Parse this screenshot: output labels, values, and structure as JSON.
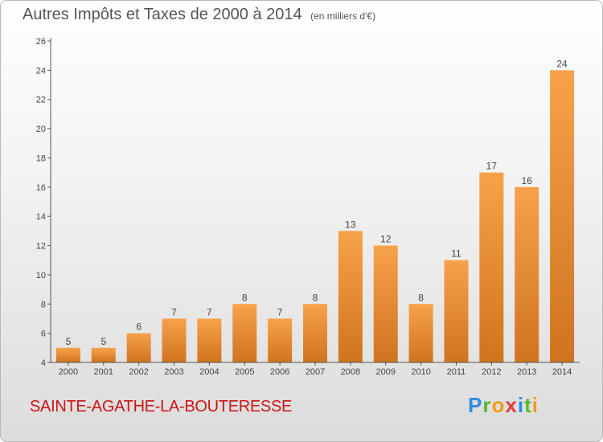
{
  "header": {
    "title": "Autres Impôts et Taxes de 2000 à 2014",
    "unit": "(en milliers d'€)"
  },
  "footer": {
    "commune": "SAINTE-AGATHE-LA-BOUTERESSE",
    "logo": [
      "P",
      "r",
      "o",
      "x",
      "i",
      "t",
      "i"
    ]
  },
  "colors": {
    "bar_light": "#f7a24a",
    "bar_dark": "#d0731f",
    "axis": "#555555",
    "commune": "#cc1616"
  },
  "chart_data": {
    "type": "bar",
    "title": "Autres Impôts et Taxes de 2000 à 2014",
    "subtitle": "(en milliers d'€)",
    "categories": [
      "2000",
      "2001",
      "2002",
      "2003",
      "2004",
      "2005",
      "2006",
      "2007",
      "2008",
      "2009",
      "2010",
      "2011",
      "2012",
      "2013",
      "2014"
    ],
    "values": [
      5,
      5,
      6,
      7,
      7,
      8,
      7,
      8,
      13,
      12,
      8,
      11,
      17,
      16,
      24
    ],
    "ylim": [
      4,
      26
    ],
    "yticks": [
      4,
      6,
      8,
      10,
      12,
      14,
      16,
      18,
      20,
      22,
      24,
      26
    ],
    "xlabel": "",
    "ylabel": "",
    "grid": false
  }
}
